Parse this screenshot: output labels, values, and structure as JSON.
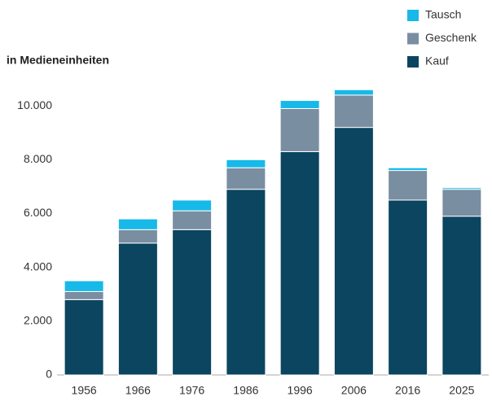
{
  "chart_data": {
    "type": "stacked_bar",
    "subtitle": "in Medieneinheiten",
    "categories": [
      "1956",
      "1966",
      "1976",
      "1986",
      "1996",
      "2006",
      "2016",
      "2025"
    ],
    "series": [
      {
        "name": "Kauf",
        "color": "#0b4560",
        "values": [
          2800,
          4900,
          5400,
          6900,
          8300,
          9200,
          6500,
          5900
        ]
      },
      {
        "name": "Geschenk",
        "color": "#7a8ea2",
        "values": [
          300,
          500,
          700,
          800,
          1600,
          1200,
          1100,
          1000
        ]
      },
      {
        "name": "Tausch",
        "color": "#17b9e9",
        "values": [
          400,
          400,
          400,
          300,
          300,
          200,
          100,
          60
        ]
      }
    ],
    "ylim": [
      0,
      10700
    ],
    "yticks": [
      0,
      {
        "value": 2000,
        "label": "2.000"
      },
      {
        "value": 4000,
        "label": "4.000"
      },
      {
        "value": 6000,
        "label": "6.000"
      },
      {
        "value": 8000,
        "label": "8.000"
      },
      {
        "value": 10000,
        "label": "10.000"
      }
    ],
    "grid": false,
    "legend": "top-right"
  }
}
